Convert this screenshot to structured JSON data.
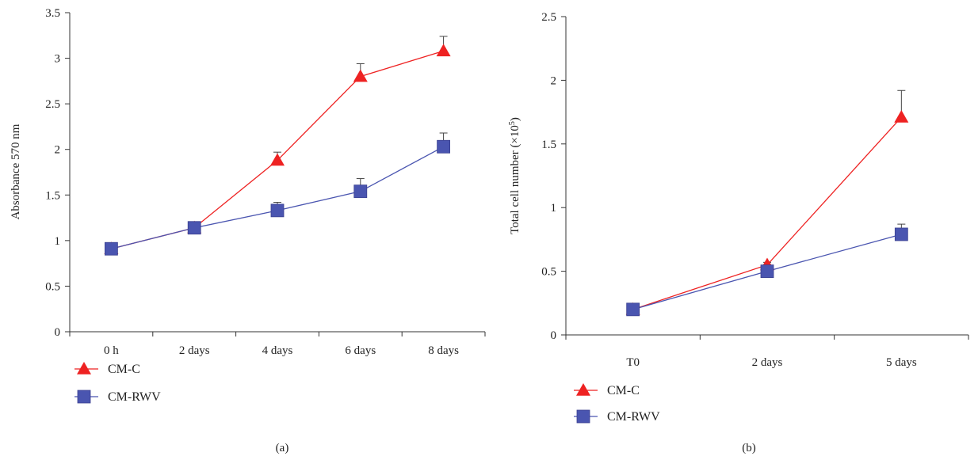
{
  "chart_data": [
    {
      "type": "line",
      "panel_label": "(a)",
      "ylabel": "Absorbance 570 nm",
      "xlabel": "",
      "ylim": [
        0,
        3.5
      ],
      "yticks": [
        0,
        0.5,
        1,
        1.5,
        2,
        2.5,
        3,
        3.5
      ],
      "ytick_labels": [
        "0",
        "0.5",
        "1",
        "1.5",
        "2",
        "2.5",
        "3",
        "3.5"
      ],
      "categories": [
        "0 h",
        "2 days",
        "4 days",
        "6 days",
        "8 days"
      ],
      "grid": false,
      "legend": "bottom-left",
      "series": [
        {
          "name": "CM-C",
          "color": "#ee2222",
          "marker": "triangle",
          "values": [
            0.91,
            1.14,
            1.88,
            2.8,
            3.08
          ],
          "errors": [
            0,
            0,
            0.09,
            0.14,
            0.16
          ]
        },
        {
          "name": "CM-RWV",
          "color": "#4a55b0",
          "marker": "square",
          "values": [
            0.91,
            1.14,
            1.33,
            1.54,
            2.03
          ],
          "errors": [
            0,
            0,
            0.09,
            0.14,
            0.15
          ]
        }
      ]
    },
    {
      "type": "line",
      "panel_label": "(b)",
      "ylabel": "Total cell number (×10",
      "ylabel_sup": "5",
      "ylabel_suffix": ")",
      "xlabel": "",
      "ylim": [
        0,
        2.5
      ],
      "yticks": [
        0,
        0.5,
        1,
        1.5,
        2,
        2.5
      ],
      "ytick_labels": [
        "0",
        "0.5",
        "1",
        "1.5",
        "2",
        "2.5"
      ],
      "categories": [
        "T0",
        "2 days",
        "5 days"
      ],
      "grid": false,
      "legend": "bottom-left",
      "series": [
        {
          "name": "CM-C",
          "color": "#ee2222",
          "marker": "triangle",
          "values": [
            0.2,
            0.55,
            1.71
          ],
          "errors": [
            0,
            0.02,
            0.21
          ]
        },
        {
          "name": "CM-RWV",
          "color": "#4a55b0",
          "marker": "square",
          "values": [
            0.2,
            0.5,
            0.79
          ],
          "errors": [
            0,
            0,
            0.08
          ]
        }
      ]
    }
  ]
}
